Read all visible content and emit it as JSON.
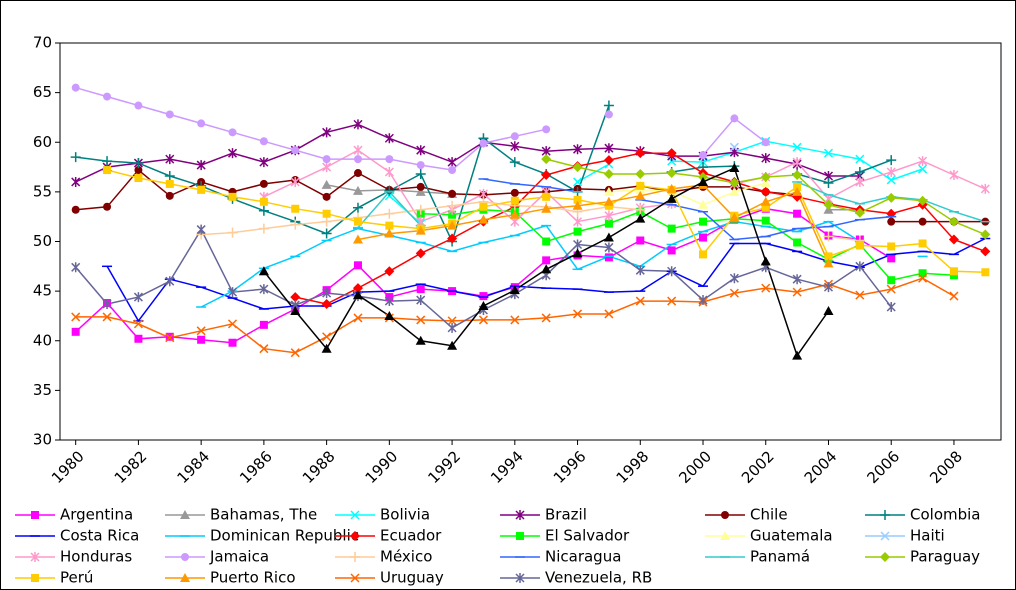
{
  "chart_data": {
    "type": "line",
    "x": [
      1980,
      1981,
      1982,
      1983,
      1984,
      1985,
      1986,
      1987,
      1988,
      1989,
      1990,
      1991,
      1992,
      1993,
      1994,
      1995,
      1996,
      1997,
      1998,
      1999,
      2000,
      2001,
      2002,
      2003,
      2004,
      2005,
      2006,
      2007,
      2008,
      2009
    ],
    "xlim": [
      1979.5,
      2009.5
    ],
    "xticks": [
      1980,
      1982,
      1984,
      1986,
      1988,
      1990,
      1992,
      1994,
      1996,
      1998,
      2000,
      2002,
      2004,
      2006,
      2008
    ],
    "ylim": [
      30,
      70
    ],
    "yticks": [
      30,
      35,
      40,
      45,
      50,
      55,
      60,
      65,
      70
    ],
    "series": [
      {
        "name": "Argentina",
        "color": "#ff00ff",
        "marker": "square",
        "values": [
          40.9,
          43.8,
          40.2,
          40.4,
          40.1,
          39.8,
          41.6,
          43.2,
          45.1,
          47.6,
          44.4,
          45.2,
          45.0,
          44.5,
          45.4,
          48.1,
          48.6,
          48.4,
          50.1,
          49.1,
          50.4,
          52.2,
          53.3,
          52.8,
          50.6,
          50.2,
          48.3,
          null,
          null,
          null
        ]
      },
      {
        "name": "Bahamas, The",
        "color": "#999999",
        "marker": "triangle",
        "values": [
          null,
          null,
          null,
          null,
          null,
          null,
          47.0,
          null,
          55.7,
          55.1,
          55.2,
          55.0,
          54.8,
          null,
          null,
          null,
          null,
          null,
          null,
          null,
          null,
          null,
          null,
          null,
          53.2,
          53.2,
          null,
          null,
          null,
          null
        ]
      },
      {
        "name": "Bolivia",
        "color": "#00ffff",
        "marker": "x",
        "values": [
          null,
          null,
          null,
          null,
          null,
          null,
          null,
          null,
          null,
          null,
          54.6,
          51.8,
          null,
          null,
          null,
          null,
          56.0,
          57.8,
          null,
          58.1,
          58.0,
          59.0,
          60.1,
          59.5,
          58.9,
          58.3,
          56.2,
          57.3,
          null,
          null
        ]
      },
      {
        "name": "Brazil",
        "color": "#800080",
        "marker": "asterisk",
        "values": [
          56.0,
          57.5,
          57.9,
          58.3,
          57.7,
          58.9,
          58.0,
          59.2,
          61.0,
          61.8,
          60.4,
          59.2,
          58.0,
          60.0,
          59.6,
          59.1,
          59.3,
          59.4,
          59.1,
          58.6,
          58.6,
          59.0,
          58.4,
          57.8,
          56.6,
          56.6,
          null,
          null,
          null,
          null
        ]
      },
      {
        "name": "Chile",
        "color": "#800000",
        "marker": "circle",
        "values": [
          53.2,
          53.5,
          57.2,
          54.6,
          56.0,
          55.0,
          55.8,
          56.2,
          54.5,
          56.9,
          55.2,
          55.5,
          54.8,
          54.7,
          54.9,
          55.0,
          55.3,
          55.2,
          55.6,
          55.0,
          55.5,
          55.5,
          55.0,
          54.7,
          null,
          null,
          52.0,
          52.0,
          52.0,
          52.0
        ]
      },
      {
        "name": "Colombia",
        "color": "#008080",
        "marker": "plus",
        "values": [
          58.5,
          58.1,
          57.9,
          56.6,
          55.6,
          54.3,
          53.1,
          52.0,
          50.8,
          53.4,
          55.1,
          56.8,
          50.0,
          60.4,
          58.0,
          56.8,
          55.0,
          63.7,
          null,
          57.0,
          57.5,
          57.6,
          null,
          56.8,
          55.9,
          57.0,
          58.2,
          null,
          null,
          null
        ]
      },
      {
        "name": "Costa Rica",
        "color": "#0000ff",
        "marker": "dash",
        "values": [
          null,
          47.5,
          42.0,
          46.2,
          45.4,
          44.3,
          43.2,
          43.5,
          43.5,
          44.9,
          45.0,
          45.7,
          45.0,
          44.4,
          45.5,
          45.3,
          45.2,
          44.9,
          45.0,
          47.0,
          45.5,
          49.8,
          49.8,
          49.0,
          48.0,
          47.4,
          48.7,
          49.0,
          48.7,
          50.3
        ]
      },
      {
        "name": "Dominican Republic",
        "color": "#00ccff",
        "marker": "dash",
        "values": [
          null,
          null,
          null,
          null,
          43.4,
          45.0,
          47.3,
          48.5,
          50.1,
          51.3,
          50.6,
          49.9,
          49.0,
          49.9,
          50.6,
          51.6,
          47.2,
          48.5,
          47.5,
          49.7,
          51.0,
          52.0,
          51.5,
          51.0,
          52.0,
          50.0,
          null,
          48.5,
          null,
          null
        ]
      },
      {
        "name": "Ecuador",
        "color": "#ff0000",
        "marker": "diamond",
        "values": [
          null,
          null,
          null,
          null,
          null,
          null,
          null,
          44.4,
          43.7,
          45.3,
          47.0,
          48.8,
          50.3,
          52.0,
          53.5,
          56.7,
          57.6,
          58.2,
          58.9,
          58.9,
          56.9,
          56.0,
          55.0,
          54.5,
          53.8,
          53.2,
          52.8,
          53.7,
          50.2,
          49.0
        ]
      },
      {
        "name": "El Salvador",
        "color": "#00ff00",
        "marker": "square",
        "values": [
          null,
          null,
          null,
          null,
          null,
          null,
          null,
          null,
          null,
          null,
          null,
          52.8,
          52.7,
          53.2,
          53.0,
          50.0,
          51.0,
          51.8,
          53.0,
          51.3,
          52.0,
          52.3,
          52.1,
          49.9,
          48.2,
          49.7,
          46.1,
          46.8,
          46.6,
          null
        ]
      },
      {
        "name": "Guatemala",
        "color": "#ffff99",
        "marker": "triangle",
        "values": [
          null,
          null,
          null,
          null,
          null,
          null,
          null,
          null,
          null,
          null,
          null,
          null,
          null,
          null,
          null,
          null,
          null,
          55.0,
          55.2,
          55.1,
          53.7,
          55.0,
          55.9,
          null,
          null,
          null,
          null,
          null,
          null,
          null
        ]
      },
      {
        "name": "Haiti",
        "color": "#99ccff",
        "marker": "x",
        "values": [
          null,
          null,
          null,
          null,
          null,
          null,
          null,
          null,
          null,
          null,
          null,
          null,
          null,
          null,
          null,
          null,
          null,
          null,
          null,
          null,
          null,
          59.5,
          null,
          null,
          null,
          null,
          null,
          null,
          null,
          null
        ]
      },
      {
        "name": "Honduras",
        "color": "#ff99cc",
        "marker": "asterisk",
        "values": [
          null,
          null,
          null,
          null,
          null,
          null,
          54.5,
          56.0,
          57.5,
          59.2,
          57.0,
          52.0,
          53.2,
          54.8,
          52.0,
          55.0,
          52.0,
          52.6,
          53.4,
          53.8,
          null,
          55.8,
          56.5,
          58.0,
          54.3,
          56.0,
          57.0,
          58.1,
          56.7,
          55.3
        ]
      },
      {
        "name": "Jamaica",
        "color": "#cc99ff",
        "marker": "circle",
        "values": [
          65.5,
          64.6,
          63.7,
          62.8,
          61.9,
          61.0,
          60.1,
          59.2,
          58.3,
          58.3,
          58.3,
          57.7,
          57.2,
          59.9,
          60.6,
          61.3,
          null,
          62.8,
          null,
          null,
          58.7,
          62.4,
          60.0,
          null,
          null,
          null,
          null,
          null,
          null,
          null
        ]
      },
      {
        "name": "México",
        "color": "#ffcc99",
        "marker": "plus",
        "values": [
          null,
          null,
          null,
          null,
          50.7,
          50.9,
          51.3,
          51.7,
          52.0,
          52.4,
          52.8,
          53.2,
          53.6,
          54.0,
          53.6,
          53.5,
          53.0,
          53.5,
          53.2,
          null,
          null,
          null,
          null,
          null,
          50.5,
          50.1,
          null,
          null,
          null,
          null
        ]
      },
      {
        "name": "Nicaragua",
        "color": "#3366ff",
        "marker": "dash",
        "values": [
          null,
          null,
          null,
          null,
          null,
          null,
          null,
          null,
          null,
          null,
          null,
          null,
          null,
          56.3,
          55.8,
          55.5,
          55.0,
          null,
          54.2,
          53.7,
          53.0,
          50.2,
          50.5,
          51.3,
          51.5,
          52.2,
          52.5,
          null,
          null,
          null
        ]
      },
      {
        "name": "Panamá",
        "color": "#33cccc",
        "marker": "dash",
        "values": [
          null,
          null,
          null,
          null,
          null,
          null,
          null,
          null,
          null,
          51.4,
          55.0,
          51.6,
          null,
          null,
          null,
          null,
          55.0,
          null,
          null,
          null,
          null,
          null,
          null,
          56.0,
          54.7,
          53.8,
          54.5,
          54.2,
          53.0,
          52.0
        ]
      },
      {
        "name": "Paraguay",
        "color": "#99cc00",
        "marker": "diamond",
        "values": [
          null,
          null,
          null,
          null,
          null,
          null,
          null,
          null,
          null,
          null,
          null,
          null,
          null,
          null,
          null,
          58.3,
          57.5,
          56.8,
          56.8,
          56.9,
          56.5,
          55.9,
          56.5,
          56.7,
          53.7,
          52.9,
          54.4,
          54.1,
          52.0,
          50.7
        ]
      },
      {
        "name": "Perú",
        "color": "#ffcc00",
        "marker": "square",
        "values": [
          null,
          57.2,
          56.4,
          55.8,
          55.2,
          54.5,
          54.0,
          53.3,
          52.8,
          52.0,
          51.6,
          51.3,
          51.8,
          53.5,
          54.1,
          54.5,
          54.2,
          53.6,
          55.6,
          55.2,
          48.7,
          52.6,
          53.4,
          55.5,
          48.5,
          49.6,
          49.5,
          49.8,
          47.0,
          46.9
        ]
      },
      {
        "name": "Puerto Rico",
        "color": "#ff9900",
        "marker": "triangle",
        "values": [
          null,
          null,
          null,
          null,
          null,
          null,
          null,
          null,
          null,
          50.2,
          50.8,
          51.1,
          51.6,
          52.2,
          52.7,
          53.3,
          53.6,
          54.0,
          54.6,
          55.3,
          55.7,
          52.4,
          54.0,
          55.0,
          47.8,
          null,
          null,
          null,
          null,
          null
        ]
      },
      {
        "name": "Uruguay",
        "color": "#ff6600",
        "marker": "x",
        "values": [
          42.4,
          42.4,
          41.7,
          40.3,
          41.0,
          41.7,
          39.2,
          38.8,
          40.4,
          42.3,
          42.3,
          42.1,
          42.0,
          42.1,
          42.1,
          42.3,
          42.7,
          42.7,
          44.0,
          44.0,
          43.9,
          44.8,
          45.3,
          44.9,
          45.7,
          44.6,
          45.2,
          46.3,
          44.5,
          null
        ]
      },
      {
        "name": "Venezuela, RB",
        "color": "#666699",
        "marker": "asterisk",
        "values": [
          47.4,
          43.7,
          44.4,
          46.0,
          51.2,
          44.9,
          45.2,
          43.6,
          44.8,
          44.5,
          44.0,
          44.1,
          41.3,
          43.1,
          44.7,
          46.6,
          49.7,
          49.4,
          47.1,
          47.0,
          44.1,
          46.3,
          47.4,
          46.2,
          45.4,
          47.5,
          43.4,
          null,
          null,
          null
        ]
      },
      {
        "color": "#000000",
        "marker": "triangle",
        "values": [
          null,
          null,
          null,
          null,
          null,
          null,
          47.0,
          43.0,
          39.2,
          44.6,
          42.5,
          40.0,
          39.5,
          43.5,
          45.1,
          47.2,
          48.8,
          50.4,
          52.3,
          54.3,
          56.0,
          57.4,
          48.0,
          38.5,
          43.0,
          null,
          null,
          null,
          null,
          null
        ]
      }
    ]
  }
}
